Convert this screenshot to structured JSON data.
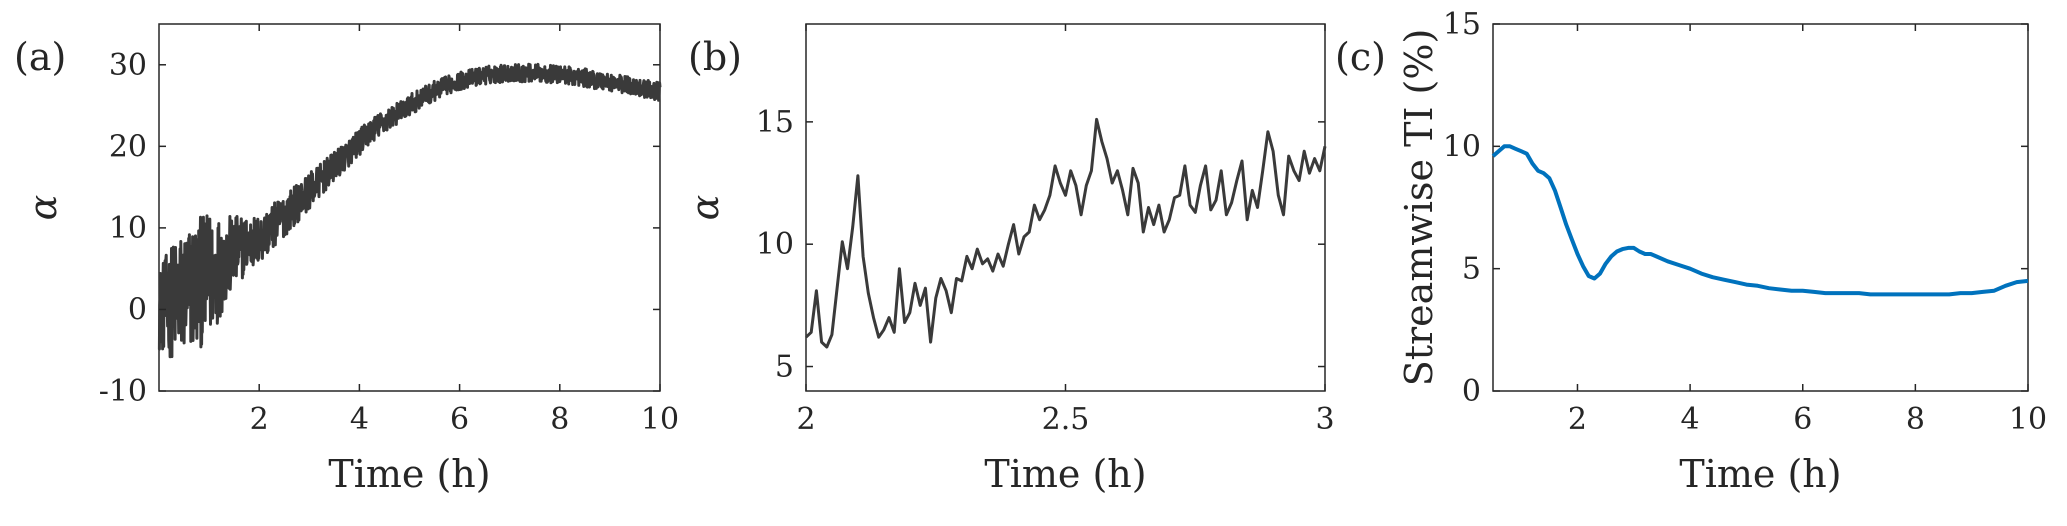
{
  "chart_data": [
    {
      "type": "line",
      "panel_label": "(a)",
      "xlabel": "Time (h)",
      "ylabel": "α",
      "xlim": [
        0,
        10
      ],
      "ylim": [
        -10,
        35
      ],
      "xticks": [
        2,
        4,
        6,
        8,
        10
      ],
      "yticks": [
        -10,
        0,
        10,
        20,
        30
      ],
      "xtick_labels": [
        "2",
        "4",
        "6",
        "8",
        "10"
      ],
      "ytick_labels": [
        "-10",
        "0",
        "10",
        "20",
        "30"
      ],
      "grid": false,
      "legend": "none",
      "colors": {
        "line": "#3a3a3a"
      },
      "series": [
        {
          "x": [
            0,
            0.25,
            0.5,
            0.75,
            1.0,
            1.25,
            1.5,
            1.75,
            2.0,
            2.25,
            2.5,
            2.75,
            3.0,
            3.25,
            3.5,
            3.75,
            4.0,
            4.25,
            4.5,
            4.75,
            5.0,
            5.25,
            5.5,
            5.75,
            6.0,
            6.25,
            6.5,
            6.75,
            7.0,
            7.25,
            7.5,
            7.75,
            8.0,
            8.25,
            8.5,
            8.75,
            9.0,
            9.25,
            9.5,
            9.75,
            10.0
          ],
          "values": [
            0,
            1,
            2,
            3,
            4,
            5.5,
            7,
            8,
            8.5,
            10,
            11.5,
            13,
            14.5,
            16,
            17.5,
            19,
            20.5,
            22,
            23,
            24,
            25,
            26,
            26.8,
            27.5,
            28,
            28.4,
            28.7,
            28.9,
            29,
            29,
            29,
            28.9,
            28.8,
            28.6,
            28.4,
            28.1,
            27.9,
            27.6,
            27.3,
            27,
            26.7
          ],
          "noise_amplitude": [
            5,
            7,
            8,
            8,
            8,
            6,
            4.5,
            3.5,
            3,
            2.8,
            2.6,
            2.4,
            2.2,
            2,
            1.8,
            1.7,
            1.6,
            1.5,
            1.4,
            1.3,
            1.3,
            1.2,
            1.2,
            1.1,
            1.1,
            1.1,
            1.1,
            1.1,
            1.1,
            1.1,
            1.1,
            1.1,
            1.1,
            1.1,
            1.1,
            1.1,
            1.1,
            1.1,
            1.1,
            1.1,
            1.1
          ]
        }
      ]
    },
    {
      "type": "line",
      "panel_label": "(b)",
      "xlabel": "Time (h)",
      "ylabel": "α",
      "xlim": [
        2,
        3
      ],
      "ylim": [
        4,
        19
      ],
      "xticks": [
        2,
        2.5,
        3
      ],
      "yticks": [
        5,
        10,
        15
      ],
      "xtick_labels": [
        "2",
        "2.5",
        "3"
      ],
      "ytick_labels": [
        "5",
        "10",
        "15"
      ],
      "grid": false,
      "legend": "none",
      "colors": {
        "line": "#3a3a3a"
      },
      "series": [
        {
          "x": [
            2.0,
            2.01,
            2.02,
            2.03,
            2.04,
            2.05,
            2.06,
            2.07,
            2.08,
            2.09,
            2.1,
            2.11,
            2.12,
            2.13,
            2.14,
            2.15,
            2.16,
            2.17,
            2.18,
            2.19,
            2.2,
            2.21,
            2.22,
            2.23,
            2.24,
            2.25,
            2.26,
            2.27,
            2.28,
            2.29,
            2.3,
            2.31,
            2.32,
            2.33,
            2.34,
            2.35,
            2.36,
            2.37,
            2.38,
            2.39,
            2.4,
            2.41,
            2.42,
            2.43,
            2.44,
            2.45,
            2.46,
            2.47,
            2.48,
            2.49,
            2.5,
            2.51,
            2.52,
            2.53,
            2.54,
            2.55,
            2.56,
            2.57,
            2.58,
            2.59,
            2.6,
            2.61,
            2.62,
            2.63,
            2.64,
            2.65,
            2.66,
            2.67,
            2.68,
            2.69,
            2.7,
            2.71,
            2.72,
            2.73,
            2.74,
            2.75,
            2.76,
            2.77,
            2.78,
            2.79,
            2.8,
            2.81,
            2.82,
            2.83,
            2.84,
            2.85,
            2.86,
            2.87,
            2.88,
            2.89,
            2.9,
            2.91,
            2.92,
            2.93,
            2.94,
            2.95,
            2.96,
            2.97,
            2.98,
            2.99,
            3.0
          ],
          "values": [
            6.2,
            6.4,
            8.1,
            6.0,
            5.8,
            6.3,
            8.2,
            10.1,
            9.0,
            10.7,
            12.8,
            9.5,
            8.0,
            7.0,
            6.2,
            6.5,
            7.0,
            6.4,
            9.0,
            6.8,
            7.2,
            8.4,
            7.5,
            8.2,
            6.0,
            7.8,
            8.6,
            8.1,
            7.2,
            8.6,
            8.5,
            9.5,
            9.0,
            9.8,
            9.2,
            9.4,
            8.9,
            9.6,
            9.1,
            10.0,
            10.8,
            9.6,
            10.3,
            10.5,
            11.6,
            11.0,
            11.4,
            12.0,
            13.2,
            12.5,
            12.0,
            13.0,
            12.4,
            11.2,
            12.4,
            13.0,
            15.1,
            14.2,
            13.5,
            12.5,
            13.0,
            12.2,
            11.2,
            13.1,
            12.5,
            10.5,
            11.5,
            10.8,
            11.6,
            10.5,
            11.0,
            11.9,
            12.0,
            13.2,
            11.6,
            11.3,
            12.4,
            13.2,
            11.4,
            11.8,
            13.0,
            11.2,
            11.7,
            12.6,
            13.4,
            11.0,
            12.2,
            11.5,
            13.0,
            14.6,
            13.8,
            12.0,
            11.2,
            13.6,
            13.0,
            12.6,
            13.8,
            12.9,
            13.5,
            13.0,
            14.0
          ]
        }
      ]
    },
    {
      "type": "line",
      "panel_label": "(c)",
      "xlabel": "Time (h)",
      "ylabel": "Streamwise TI (%)",
      "xlim": [
        0.5,
        10
      ],
      "ylim": [
        0,
        15
      ],
      "xticks": [
        2,
        4,
        6,
        8,
        10
      ],
      "yticks": [
        0,
        5,
        10,
        15
      ],
      "xtick_labels": [
        "2",
        "4",
        "6",
        "8",
        "10"
      ],
      "ytick_labels": [
        "0",
        "5",
        "10",
        "15"
      ],
      "grid": false,
      "legend": "none",
      "colors": {
        "line": "#0072bd"
      },
      "series": [
        {
          "x": [
            0.5,
            0.6,
            0.7,
            0.8,
            0.9,
            1.0,
            1.1,
            1.2,
            1.3,
            1.4,
            1.5,
            1.6,
            1.7,
            1.8,
            1.9,
            2.0,
            2.1,
            2.2,
            2.3,
            2.4,
            2.5,
            2.6,
            2.7,
            2.8,
            2.9,
            3.0,
            3.1,
            3.2,
            3.3,
            3.4,
            3.6,
            3.8,
            4.0,
            4.2,
            4.4,
            4.6,
            4.8,
            5.0,
            5.2,
            5.4,
            5.6,
            5.8,
            6.0,
            6.2,
            6.4,
            6.6,
            6.8,
            7.0,
            7.2,
            7.4,
            7.6,
            7.8,
            8.0,
            8.2,
            8.4,
            8.6,
            8.8,
            9.0,
            9.2,
            9.4,
            9.6,
            9.8,
            10.0
          ],
          "values": [
            9.6,
            9.8,
            10.0,
            10.0,
            9.9,
            9.8,
            9.7,
            9.3,
            9.0,
            8.9,
            8.7,
            8.2,
            7.5,
            6.8,
            6.2,
            5.6,
            5.1,
            4.7,
            4.6,
            4.8,
            5.2,
            5.5,
            5.7,
            5.8,
            5.85,
            5.85,
            5.7,
            5.6,
            5.6,
            5.5,
            5.3,
            5.15,
            5.0,
            4.8,
            4.65,
            4.55,
            4.45,
            4.35,
            4.3,
            4.2,
            4.15,
            4.1,
            4.1,
            4.05,
            4.0,
            4.0,
            4.0,
            4.0,
            3.95,
            3.95,
            3.95,
            3.95,
            3.95,
            3.95,
            3.95,
            3.95,
            4.0,
            4.0,
            4.05,
            4.1,
            4.3,
            4.45,
            4.5
          ]
        }
      ]
    }
  ]
}
